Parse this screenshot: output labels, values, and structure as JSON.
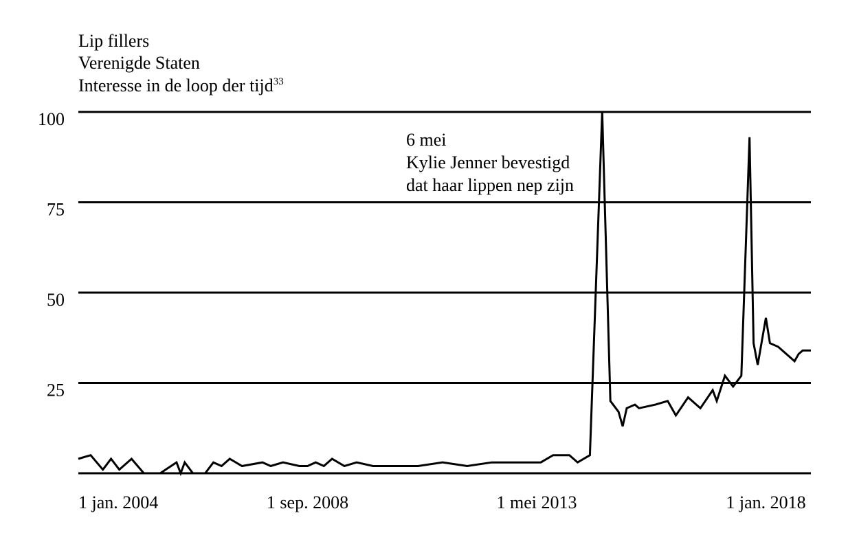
{
  "chart_data": {
    "type": "line",
    "title": "Lip fillers",
    "subtitle": "Verenigde Staten",
    "subtitle2": "Interesse in de loop der tijd",
    "subtitle2_sup": "33",
    "xlabel": "",
    "ylabel": "",
    "ylim": [
      0,
      100
    ],
    "xlim": [
      "2004-01",
      "2018-12"
    ],
    "grid": true,
    "y_ticks": [
      "100",
      "75",
      "50",
      "25"
    ],
    "y_tick_values": [
      100,
      75,
      50,
      25
    ],
    "x_ticks": [
      "1 jan. 2004",
      "1 sep. 2008",
      "1 mei 2013",
      "1 jan. 2018"
    ],
    "x_tick_values": [
      "2004-01",
      "2008-09",
      "2013-05",
      "2018-01"
    ],
    "annotation": {
      "lines": [
        "6 mei",
        "Kylie Jenner bevestigd",
        "dat haar lippen nep zijn"
      ],
      "x": "2015-05"
    },
    "series": [
      {
        "x": [
          "2004-01",
          "2004-04",
          "2004-07",
          "2004-09",
          "2004-11",
          "2005-02",
          "2005-05",
          "2005-09",
          "2006-01",
          "2006-02",
          "2006-03",
          "2006-05",
          "2006-08",
          "2006-10",
          "2006-12",
          "2007-02",
          "2007-05",
          "2007-10",
          "2007-12",
          "2008-03",
          "2008-07",
          "2008-09",
          "2008-11",
          "2009-01",
          "2009-03",
          "2009-06",
          "2009-09",
          "2010-01",
          "2010-03",
          "2010-05",
          "2010-07",
          "2010-12",
          "2011-06",
          "2011-12",
          "2012-06",
          "2012-08",
          "2012-11",
          "2013-03",
          "2013-06",
          "2013-09",
          "2014-01",
          "2014-03",
          "2014-06",
          "2014-09",
          "2014-11",
          "2015-01",
          "2015-02",
          "2015-03",
          "2015-05",
          "2015-06",
          "2015-10",
          "2016-01",
          "2016-03",
          "2016-06",
          "2016-09",
          "2016-12",
          "2017-01",
          "2017-03",
          "2017-05",
          "2017-07",
          "2017-09",
          "2017-10",
          "2017-11",
          "2018-01",
          "2018-02",
          "2018-04",
          "2018-06",
          "2018-08",
          "2018-09",
          "2018-10",
          "2018-11",
          "2018-12"
        ],
        "values": [
          4,
          5,
          1,
          4,
          1,
          4,
          0,
          0,
          3,
          0,
          3,
          0,
          0,
          3,
          2,
          4,
          2,
          3,
          2,
          3,
          2,
          2,
          3,
          2,
          4,
          2,
          3,
          2,
          2,
          2,
          2,
          2,
          3,
          2,
          3,
          3,
          3,
          3,
          3,
          5,
          5,
          3,
          5,
          100,
          20,
          17,
          13,
          18,
          19,
          18,
          19,
          20,
          16,
          21,
          18,
          23,
          20,
          27,
          24,
          27,
          93,
          36,
          30,
          43,
          36,
          35,
          33,
          31,
          33,
          34,
          34,
          34
        ]
      }
    ]
  }
}
